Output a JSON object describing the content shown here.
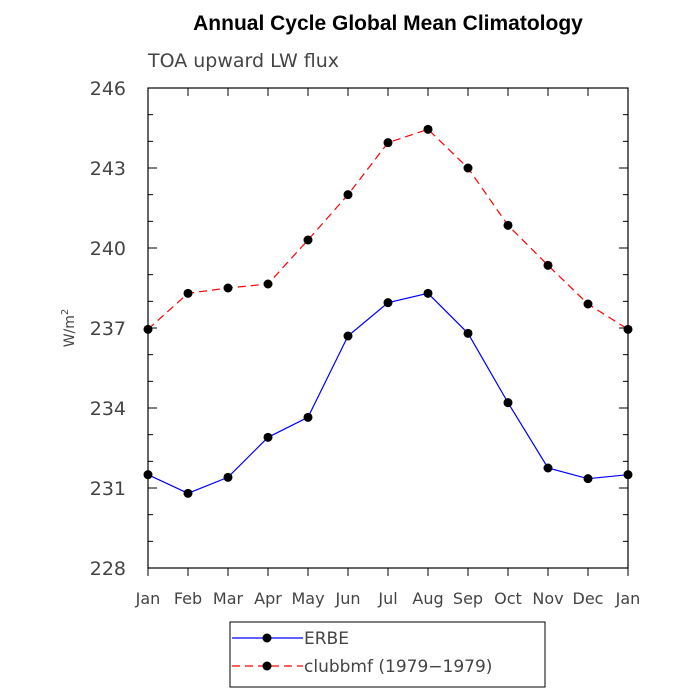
{
  "chart_data": {
    "type": "line",
    "title": "Annual Cycle Global Mean Climatology",
    "subtitle": "TOA upward LW flux",
    "ylabel_base": "W/m",
    "ylabel_sup": "2",
    "xlabel": "",
    "categories": [
      "Jan",
      "Feb",
      "Mar",
      "Apr",
      "May",
      "Jun",
      "Jul",
      "Aug",
      "Sep",
      "Oct",
      "Nov",
      "Dec",
      "Jan"
    ],
    "ylim": [
      228,
      246
    ],
    "yticks": [
      228,
      231,
      234,
      237,
      240,
      243,
      246
    ],
    "ytick_labels": [
      "228",
      "231",
      "234",
      "237",
      "240",
      "243",
      "246"
    ],
    "series": [
      {
        "name": "ERBE",
        "color": "#0000ff",
        "dash": "solid",
        "values": [
          231.5,
          230.8,
          231.4,
          232.9,
          233.65,
          236.7,
          237.95,
          238.3,
          236.8,
          234.2,
          231.75,
          231.35,
          231.5
        ]
      },
      {
        "name": "clubbmf (1979−1979)",
        "color": "#ff0000",
        "dash": "dashed",
        "values": [
          236.95,
          238.3,
          238.5,
          238.65,
          240.3,
          242.0,
          243.95,
          244.45,
          243.0,
          240.85,
          239.35,
          237.9,
          236.95
        ]
      }
    ],
    "legend_position": "bottom-center",
    "grid": false
  }
}
